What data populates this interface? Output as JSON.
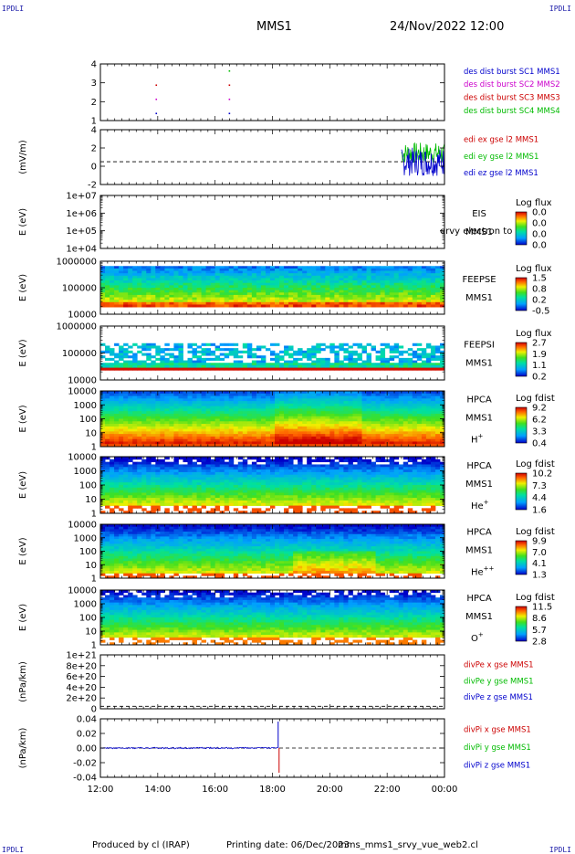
{
  "header": {
    "corner_left": "IPDLI",
    "corner_right": "IPDLI",
    "mission": "MMS1",
    "datetime": "24/Nov/2022 12:00"
  },
  "footer": {
    "produced_by": "Produced by cl (IRAP)",
    "printing_date": "Printing date: 06/Dec/2023",
    "script_name": "mms_mms1_srvy_vue_web2.cl",
    "corner_left": "IPDLI",
    "corner_right": "IPDLI"
  },
  "colors": {
    "red": "#cc0000",
    "green": "#00bb00",
    "blue": "#0000cc",
    "magenta": "#cc00cc",
    "navy": "#000088"
  },
  "chart_data": [
    {
      "type": "scatter",
      "panel": "burst",
      "ylabel": "",
      "yticks": [
        "1",
        "2",
        "3",
        "4"
      ],
      "ylim": [
        0.5,
        4.5
      ],
      "legend": [
        {
          "text": "des dist burst SC1 MMS1",
          "color": "#0000cc"
        },
        {
          "text": "des dist burst SC2 MMS2",
          "color": "#cc00cc"
        },
        {
          "text": "des dist burst SC3 MMS3",
          "color": "#cc0000"
        },
        {
          "text": "des dist burst SC4 MMS4",
          "color": "#00bb00"
        }
      ],
      "points": [
        {
          "t": 1.95,
          "y": 1,
          "color": "#0000cc"
        },
        {
          "t": 1.95,
          "y": 2,
          "color": "#cc00cc"
        },
        {
          "t": 1.95,
          "y": 3,
          "color": "#cc0000"
        },
        {
          "t": 4.5,
          "y": 1,
          "color": "#0000cc"
        },
        {
          "t": 4.5,
          "y": 2,
          "color": "#cc00cc"
        },
        {
          "t": 4.5,
          "y": 3,
          "color": "#cc0000"
        },
        {
          "t": 4.5,
          "y": 4,
          "color": "#00bb00"
        }
      ]
    },
    {
      "type": "line",
      "panel": "edi",
      "ylabel": "(mV/m)",
      "yticks": [
        "-2",
        "0",
        "2",
        "4"
      ],
      "ylim": [
        -3.2,
        4.5
      ],
      "legend": [
        {
          "text": "edi ex gse l2 MMS1",
          "color": "#cc0000"
        },
        {
          "text": "edi ey gse l2 MMS1",
          "color": "#00bb00"
        },
        {
          "text": "edi ez gse l2 MMS1",
          "color": "#0000cc"
        }
      ],
      "data_start_hour": 10.5,
      "data_end_hour": 12
    },
    {
      "type": "heatmap",
      "panel": "eis",
      "ylabel": "E (eV)",
      "yticks": [
        "1e+04",
        "1e+05",
        "1e+06",
        "1e+07"
      ],
      "instrument": [
        "EIS",
        "MMS1"
      ],
      "overlap_label": "ervy electron to",
      "colorbar_title": "Log flux",
      "colorbar_values": [
        "0.0",
        "0.0",
        "0.0",
        "0.0"
      ],
      "empty": true
    },
    {
      "type": "heatmap",
      "panel": "feepse",
      "ylabel": "E (eV)",
      "yticks": [
        "10000",
        "100000",
        "1000000"
      ],
      "instrument": [
        "FEEPSE",
        "MMS1"
      ],
      "colorbar_title": "Log flux",
      "colorbar_values": [
        "1.5",
        "0.8",
        "0.2",
        "-0.5"
      ]
    },
    {
      "type": "heatmap",
      "panel": "feepsi",
      "ylabel": "E (eV)",
      "yticks": [
        "10000",
        "100000",
        "1000000"
      ],
      "instrument": [
        "FEEPSI",
        "MMS1"
      ],
      "colorbar_title": "Log flux",
      "colorbar_values": [
        "2.7",
        "1.9",
        "1.1",
        "0.2"
      ]
    },
    {
      "type": "heatmap",
      "panel": "hpca_h",
      "ylabel": "E (eV)",
      "yticks": [
        "1",
        "10",
        "100",
        "1000",
        "10000"
      ],
      "instrument": [
        "HPCA",
        "MMS1"
      ],
      "species": "H",
      "species_sup": "+",
      "colorbar_title": "Log fdist",
      "colorbar_values": [
        "9.2",
        "6.2",
        "3.3",
        "0.4"
      ]
    },
    {
      "type": "heatmap",
      "panel": "hpca_he",
      "ylabel": "E (eV)",
      "yticks": [
        "1",
        "10",
        "100",
        "1000",
        "10000"
      ],
      "instrument": [
        "HPCA",
        "MMS1"
      ],
      "species": "He",
      "species_sup": "+",
      "colorbar_title": "Log fdist",
      "colorbar_values": [
        "10.2",
        "7.3",
        "4.4",
        "1.6"
      ]
    },
    {
      "type": "heatmap",
      "panel": "hpca_hepp",
      "ylabel": "E (eV)",
      "yticks": [
        "1",
        "10",
        "100",
        "1000",
        "10000"
      ],
      "instrument": [
        "HPCA",
        "MMS1"
      ],
      "species": "He",
      "species_sup": "++",
      "colorbar_title": "Log fdist",
      "colorbar_values": [
        "9.9",
        "7.0",
        "4.1",
        "1.3"
      ]
    },
    {
      "type": "heatmap",
      "panel": "hpca_o",
      "ylabel": "E (eV)",
      "yticks": [
        "1",
        "10",
        "100",
        "1000",
        "10000"
      ],
      "instrument": [
        "HPCA",
        "MMS1"
      ],
      "species": "O",
      "species_sup": "+",
      "colorbar_title": "Log fdist",
      "colorbar_values": [
        "11.5",
        "8.6",
        "5.7",
        "2.8"
      ]
    },
    {
      "type": "line",
      "panel": "divpe",
      "ylabel": "(nPa/km)",
      "yticks": [
        "0",
        "2e+20",
        "4e+20",
        "6e+20",
        "8e+20",
        "1e+21"
      ],
      "ylim": [
        -5e+19,
        1.05e+21
      ],
      "legend": [
        {
          "text": "divPe x gse MMS1",
          "color": "#cc0000"
        },
        {
          "text": "divPe y gse MMS1",
          "color": "#00bb00"
        },
        {
          "text": "divPe z gse MMS1",
          "color": "#0000cc"
        }
      ]
    },
    {
      "type": "line",
      "panel": "divpi",
      "ylabel": "(nPa/km)",
      "yticks": [
        "-0.04",
        "-0.02",
        "0.00",
        "0.02",
        "0.04"
      ],
      "ylim": [
        -0.048,
        0.048
      ],
      "legend": [
        {
          "text": "divPi x gse MMS1",
          "color": "#cc0000"
        },
        {
          "text": "divPi y gse MMS1",
          "color": "#00bb00"
        },
        {
          "text": "divPi z gse MMS1",
          "color": "#0000cc"
        }
      ],
      "spike_hour": 6.2
    }
  ],
  "xaxis": {
    "ticks": [
      "12:00",
      "14:00",
      "16:00",
      "18:00",
      "20:00",
      "22:00",
      "00:00"
    ],
    "xlim_hours": [
      0,
      12
    ]
  }
}
